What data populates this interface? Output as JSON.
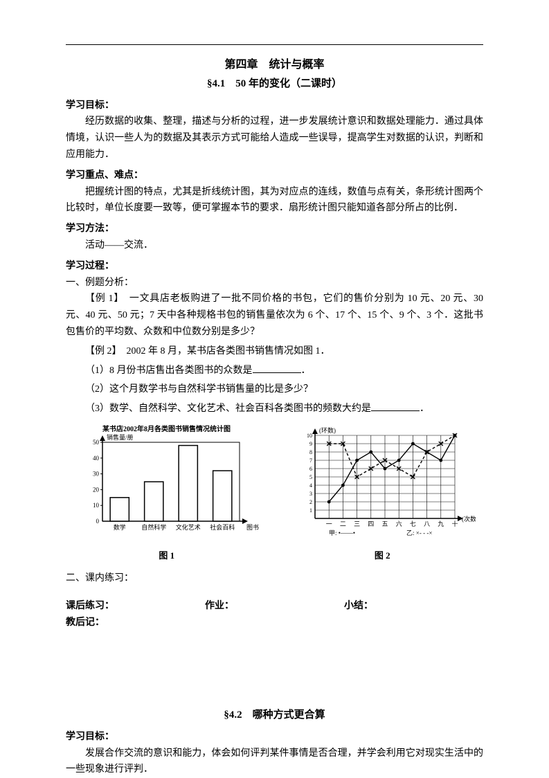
{
  "chapter_title": "第四章　统计与概率",
  "section_title": "§4.1　50 年的变化（二课时）",
  "labels": {
    "goal": "学习目标：",
    "focus": "学习重点、难点：",
    "method": "学习方法：",
    "process": "学习过程：",
    "analysis": "一、例题分析：",
    "in_class": "二、课内练习：",
    "after_class": "课后练习：",
    "homework": "作业：",
    "summary": "小结：",
    "afternote": "教后记：",
    "fig1": "图 1",
    "fig2": "图 2"
  },
  "goal_text": "经历数据的收集、整理，描述与分析的过程，进一步发展统计意识和数据处理能力．通过具体情境，认识一些人为的数据及其表示方式可能给人造成一些误导，提高学生对数据的认识，判断和应用能力．",
  "focus_text": "把握统计图的特点，尤其是折线统计图，其为对应点的连线，数值与点有关，条形统计图两个比较时，单位长度要一致等，便可掌握本节的要求．扇形统计图只能知道各部分所占的比例．",
  "method_text": "活动——交流．",
  "example1": "【例 1】　一文具店老板购进了一批不同价格的书包，它们的售价分别为 10 元、20 元、30 元、40 元、50 元；7 天中各种规格书包的销售量依次为 6 个、17 个、15 个、9 个、3 个．这批书包售价的平均数、众数和中位数分别是多少？",
  "example2": "【例 2】　2002 年 8 月，某书店各类图书销售情况如图 1．",
  "q1": "（1）8 月份书店售出各类图书的众数是",
  "q1_end": "．",
  "q2": "（2）这个月数学书与自然科学书销售量的比是多少？",
  "q3": "（3）数学、自然科学、文化艺术、社会百科各类图书的频数大约是",
  "q3_end": "．",
  "section2_title": "§4.2　哪种方式更合算",
  "section2_goal": "发展合作交流的意识和能力，体会如何评判某件事情是否合理，并学会利用它对现实生活中的一些现象进行评判．",
  "fig1_chart": {
    "title": "某书店2002年8月各类图书销售情况统计图",
    "ylabel": "销售量/册",
    "xlabel": "图书",
    "categories": [
      "数学",
      "自然科学",
      "文化艺术",
      "社会百科"
    ],
    "values": [
      15,
      25,
      48,
      32
    ],
    "ymax": 50,
    "ystep": 10,
    "bar_fill": "#ffffff",
    "bar_stroke": "#000000",
    "axis_color": "#000000",
    "bg": "#ffffff",
    "font_size": 9
  },
  "fig2_chart": {
    "ylabel": "(环数)",
    "xlabel": "(次数)",
    "x_ticks": [
      "一",
      "二",
      "三",
      "四",
      "五",
      "六",
      "七",
      "八",
      "九",
      "十"
    ],
    "y_ticks": [
      1,
      2,
      3,
      4,
      5,
      6,
      7,
      8,
      9,
      10
    ],
    "series": [
      {
        "name": "甲",
        "marker": "circle",
        "dash": "0",
        "values": [
          2,
          4,
          7,
          8,
          6,
          7,
          9,
          8,
          7,
          10
        ]
      },
      {
        "name": "乙",
        "marker": "x",
        "dash": "4 3",
        "values": [
          9,
          9,
          5,
          6,
          7,
          6,
          5,
          8,
          9,
          10
        ]
      }
    ],
    "grid_color": "#000000",
    "axis_color": "#000000",
    "bg": "#ffffff",
    "font_size": 9,
    "legend": {
      "jia": "甲: •——•",
      "yi": "乙: ×- - -×"
    }
  }
}
